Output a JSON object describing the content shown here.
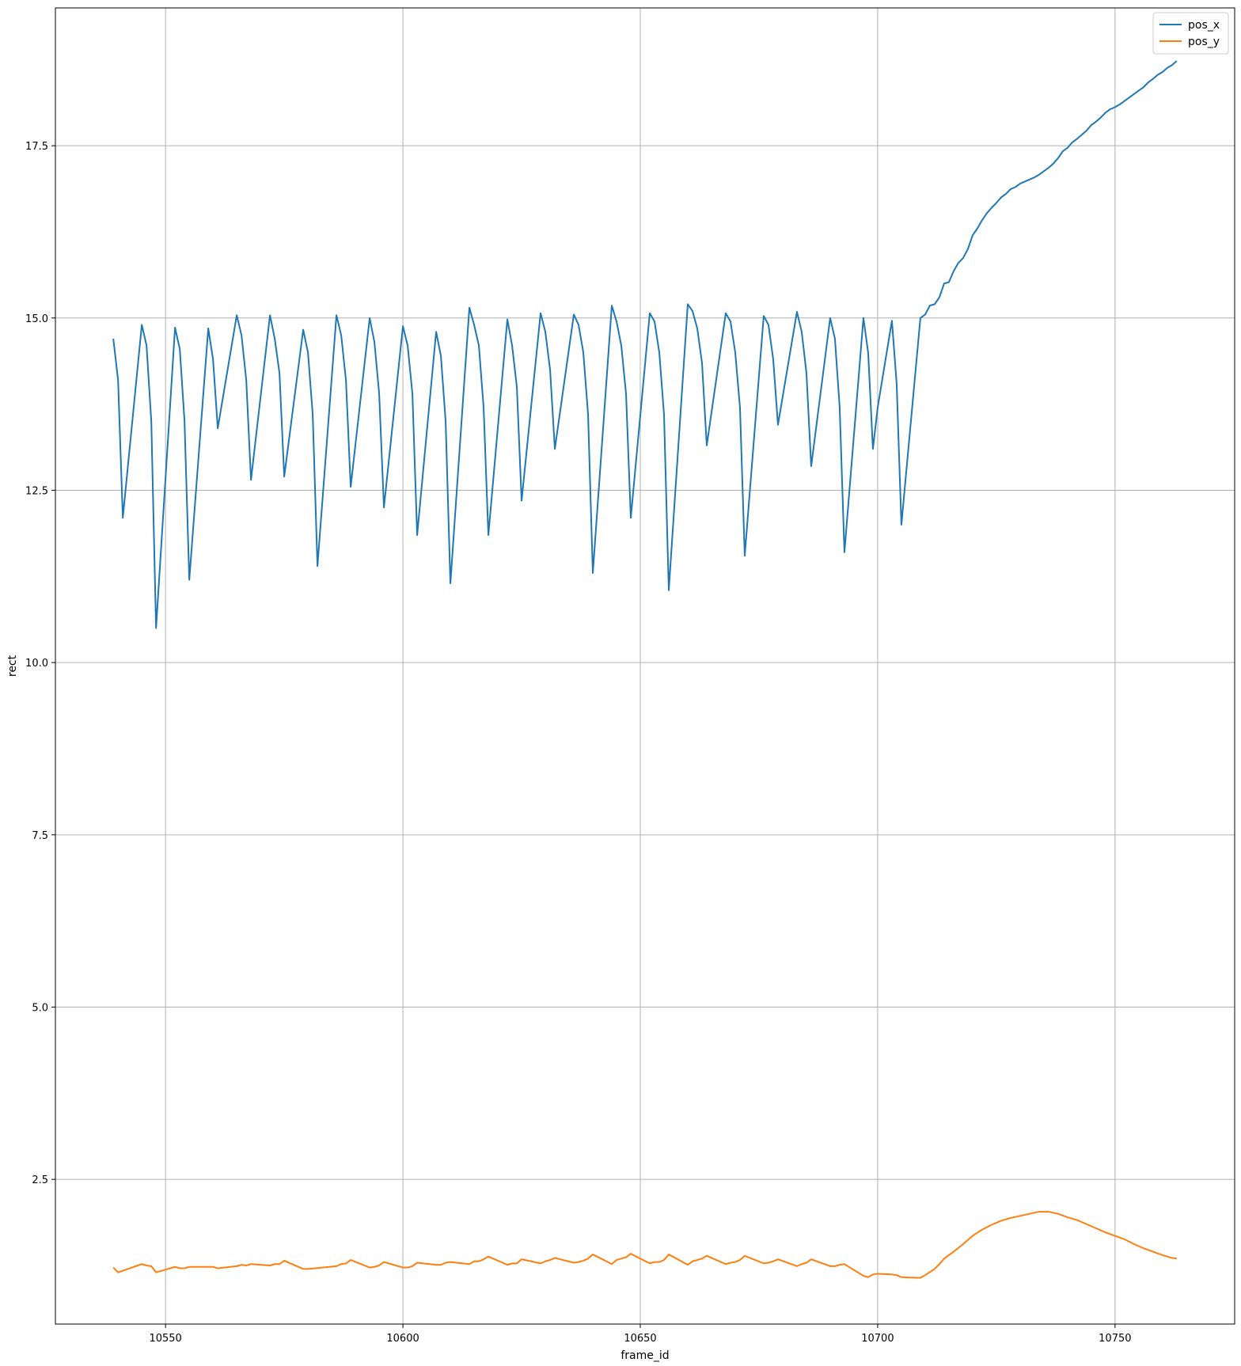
{
  "chart_data": {
    "type": "line",
    "xlabel": "frame_id",
    "ylabel": "rect",
    "xlim": [
      10526.8,
      10775.2
    ],
    "ylim": [
      0.4,
      19.5
    ],
    "xticks": [
      10550,
      10600,
      10650,
      10700,
      10750
    ],
    "yticks": [
      2.5,
      5.0,
      7.5,
      10.0,
      12.5,
      15.0,
      17.5
    ],
    "xtick_labels": [
      "10550",
      "10600",
      "10650",
      "10700",
      "10750"
    ],
    "ytick_labels": [
      "2.5",
      "5.0",
      "7.5",
      "10.0",
      "12.5",
      "15.0",
      "17.5"
    ],
    "grid": true,
    "legend_position": "top-right",
    "series": [
      {
        "name": "pos_x",
        "color": "#1f77b4",
        "points": [
          [
            10539,
            14.7
          ],
          [
            10540,
            14.1
          ],
          [
            10541,
            12.1
          ],
          [
            10545,
            14.9
          ],
          [
            10546,
            14.6
          ],
          [
            10547,
            13.5
          ],
          [
            10548,
            10.5
          ],
          [
            10552,
            14.86
          ],
          [
            10553,
            14.55
          ],
          [
            10554,
            13.5
          ],
          [
            10555,
            11.2
          ],
          [
            10559,
            14.85
          ],
          [
            10560,
            14.4
          ],
          [
            10561,
            13.4
          ],
          [
            10565,
            15.04
          ],
          [
            10566,
            14.75
          ],
          [
            10567,
            14.1
          ],
          [
            10568,
            12.65
          ],
          [
            10572,
            15.04
          ],
          [
            10573,
            14.7
          ],
          [
            10574,
            14.2
          ],
          [
            10575,
            12.7
          ],
          [
            10579,
            14.83
          ],
          [
            10580,
            14.5
          ],
          [
            10581,
            13.6
          ],
          [
            10582,
            11.4
          ],
          [
            10586,
            15.04
          ],
          [
            10587,
            14.75
          ],
          [
            10588,
            14.1
          ],
          [
            10589,
            12.55
          ],
          [
            10593,
            15.0
          ],
          [
            10594,
            14.65
          ],
          [
            10595,
            13.9
          ],
          [
            10596,
            12.25
          ],
          [
            10600,
            14.88
          ],
          [
            10601,
            14.6
          ],
          [
            10602,
            13.9
          ],
          [
            10603,
            11.85
          ],
          [
            10607,
            14.8
          ],
          [
            10608,
            14.45
          ],
          [
            10609,
            13.5
          ],
          [
            10610,
            11.15
          ],
          [
            10614,
            15.15
          ],
          [
            10615,
            14.9
          ],
          [
            10616,
            14.6
          ],
          [
            10617,
            13.7
          ],
          [
            10618,
            11.85
          ],
          [
            10622,
            14.98
          ],
          [
            10623,
            14.6
          ],
          [
            10624,
            14.0
          ],
          [
            10625,
            12.35
          ],
          [
            10629,
            15.07
          ],
          [
            10630,
            14.8
          ],
          [
            10631,
            14.25
          ],
          [
            10632,
            13.1
          ],
          [
            10636,
            15.05
          ],
          [
            10637,
            14.9
          ],
          [
            10638,
            14.5
          ],
          [
            10639,
            13.6
          ],
          [
            10640,
            11.3
          ],
          [
            10644,
            15.18
          ],
          [
            10645,
            14.95
          ],
          [
            10646,
            14.6
          ],
          [
            10647,
            13.9
          ],
          [
            10648,
            12.1
          ],
          [
            10652,
            15.07
          ],
          [
            10653,
            14.95
          ],
          [
            10654,
            14.5
          ],
          [
            10655,
            13.6
          ],
          [
            10656,
            11.05
          ],
          [
            10660,
            15.2
          ],
          [
            10661,
            15.1
          ],
          [
            10662,
            14.85
          ],
          [
            10663,
            14.35
          ],
          [
            10664,
            13.15
          ],
          [
            10668,
            15.07
          ],
          [
            10669,
            14.95
          ],
          [
            10670,
            14.5
          ],
          [
            10671,
            13.7
          ],
          [
            10672,
            11.55
          ],
          [
            10676,
            15.03
          ],
          [
            10677,
            14.9
          ],
          [
            10678,
            14.4
          ],
          [
            10679,
            13.45
          ],
          [
            10683,
            15.09
          ],
          [
            10684,
            14.8
          ],
          [
            10685,
            14.2
          ],
          [
            10686,
            12.85
          ],
          [
            10690,
            15.0
          ],
          [
            10691,
            14.7
          ],
          [
            10692,
            13.7
          ],
          [
            10693,
            11.6
          ],
          [
            10697,
            15.0
          ],
          [
            10698,
            14.5
          ],
          [
            10699,
            13.1
          ],
          [
            10700,
            13.7
          ],
          [
            10703,
            14.96
          ],
          [
            10704,
            14.05
          ],
          [
            10705,
            12.0
          ],
          [
            10709,
            15.0
          ],
          [
            10710,
            15.05
          ],
          [
            10711,
            15.18
          ],
          [
            10712,
            15.2
          ],
          [
            10713,
            15.3
          ],
          [
            10714,
            15.5
          ],
          [
            10715,
            15.52
          ],
          [
            10716,
            15.68
          ],
          [
            10717,
            15.8
          ],
          [
            10718,
            15.87
          ],
          [
            10719,
            16.0
          ],
          [
            10720,
            16.2
          ],
          [
            10721,
            16.3
          ],
          [
            10722,
            16.42
          ],
          [
            10723,
            16.52
          ],
          [
            10724,
            16.6
          ],
          [
            10725,
            16.67
          ],
          [
            10726,
            16.75
          ],
          [
            10727,
            16.8
          ],
          [
            10728,
            16.87
          ],
          [
            10729,
            16.9
          ],
          [
            10730,
            16.95
          ],
          [
            10731,
            16.98
          ],
          [
            10732,
            17.01
          ],
          [
            10733,
            17.04
          ],
          [
            10734,
            17.08
          ],
          [
            10735,
            17.13
          ],
          [
            10736,
            17.18
          ],
          [
            10737,
            17.24
          ],
          [
            10738,
            17.32
          ],
          [
            10739,
            17.42
          ],
          [
            10740,
            17.47
          ],
          [
            10741,
            17.55
          ],
          [
            10742,
            17.6
          ],
          [
            10743,
            17.66
          ],
          [
            10744,
            17.72
          ],
          [
            10745,
            17.8
          ],
          [
            10746,
            17.85
          ],
          [
            10747,
            17.91
          ],
          [
            10748,
            17.98
          ],
          [
            10749,
            18.03
          ],
          [
            10750,
            18.06
          ],
          [
            10751,
            18.1
          ],
          [
            10752,
            18.15
          ],
          [
            10753,
            18.2
          ],
          [
            10754,
            18.25
          ],
          [
            10755,
            18.3
          ],
          [
            10756,
            18.35
          ],
          [
            10757,
            18.42
          ],
          [
            10758,
            18.47
          ],
          [
            10759,
            18.53
          ],
          [
            10760,
            18.57
          ],
          [
            10761,
            18.63
          ],
          [
            10762,
            18.67
          ],
          [
            10763,
            18.73
          ]
        ]
      },
      {
        "name": "pos_y",
        "color": "#ff7f0e",
        "points": [
          [
            10539,
            1.22
          ],
          [
            10540,
            1.15
          ],
          [
            10545,
            1.27
          ],
          [
            10546,
            1.25
          ],
          [
            10547,
            1.24
          ],
          [
            10548,
            1.15
          ],
          [
            10552,
            1.23
          ],
          [
            10553,
            1.21
          ],
          [
            10554,
            1.21
          ],
          [
            10555,
            1.23
          ],
          [
            10559,
            1.23
          ],
          [
            10560,
            1.23
          ],
          [
            10561,
            1.21
          ],
          [
            10565,
            1.24
          ],
          [
            10566,
            1.26
          ],
          [
            10567,
            1.25
          ],
          [
            10568,
            1.27
          ],
          [
            10572,
            1.25
          ],
          [
            10573,
            1.27
          ],
          [
            10574,
            1.27
          ],
          [
            10575,
            1.32
          ],
          [
            10579,
            1.2
          ],
          [
            10580,
            1.2
          ],
          [
            10586,
            1.24
          ],
          [
            10587,
            1.27
          ],
          [
            10588,
            1.28
          ],
          [
            10589,
            1.33
          ],
          [
            10593,
            1.22
          ],
          [
            10594,
            1.23
          ],
          [
            10595,
            1.25
          ],
          [
            10596,
            1.3
          ],
          [
            10600,
            1.22
          ],
          [
            10601,
            1.22
          ],
          [
            10602,
            1.24
          ],
          [
            10603,
            1.29
          ],
          [
            10607,
            1.26
          ],
          [
            10608,
            1.26
          ],
          [
            10609,
            1.29
          ],
          [
            10610,
            1.3
          ],
          [
            10614,
            1.27
          ],
          [
            10615,
            1.31
          ],
          [
            10616,
            1.31
          ],
          [
            10617,
            1.34
          ],
          [
            10618,
            1.38
          ],
          [
            10622,
            1.26
          ],
          [
            10623,
            1.28
          ],
          [
            10624,
            1.28
          ],
          [
            10625,
            1.34
          ],
          [
            10629,
            1.28
          ],
          [
            10630,
            1.31
          ],
          [
            10631,
            1.33
          ],
          [
            10632,
            1.36
          ],
          [
            10636,
            1.29
          ],
          [
            10637,
            1.3
          ],
          [
            10638,
            1.32
          ],
          [
            10639,
            1.35
          ],
          [
            10640,
            1.41
          ],
          [
            10644,
            1.27
          ],
          [
            10645,
            1.33
          ],
          [
            10646,
            1.35
          ],
          [
            10647,
            1.37
          ],
          [
            10648,
            1.42
          ],
          [
            10652,
            1.28
          ],
          [
            10653,
            1.3
          ],
          [
            10654,
            1.3
          ],
          [
            10655,
            1.33
          ],
          [
            10656,
            1.41
          ],
          [
            10660,
            1.26
          ],
          [
            10661,
            1.31
          ],
          [
            10662,
            1.33
          ],
          [
            10663,
            1.35
          ],
          [
            10664,
            1.39
          ],
          [
            10668,
            1.27
          ],
          [
            10669,
            1.29
          ],
          [
            10670,
            1.3
          ],
          [
            10671,
            1.33
          ],
          [
            10672,
            1.39
          ],
          [
            10676,
            1.28
          ],
          [
            10677,
            1.29
          ],
          [
            10678,
            1.31
          ],
          [
            10679,
            1.34
          ],
          [
            10683,
            1.24
          ],
          [
            10684,
            1.27
          ],
          [
            10685,
            1.29
          ],
          [
            10686,
            1.34
          ],
          [
            10690,
            1.24
          ],
          [
            10691,
            1.24
          ],
          [
            10692,
            1.26
          ],
          [
            10693,
            1.27
          ],
          [
            10697,
            1.1
          ],
          [
            10698,
            1.08
          ],
          [
            10699,
            1.12
          ],
          [
            10700,
            1.13
          ],
          [
            10703,
            1.12
          ],
          [
            10704,
            1.11
          ],
          [
            10705,
            1.08
          ],
          [
            10709,
            1.07
          ],
          [
            10710,
            1.11
          ],
          [
            10712,
            1.2
          ],
          [
            10713,
            1.27
          ],
          [
            10714,
            1.35
          ],
          [
            10716,
            1.45
          ],
          [
            10718,
            1.56
          ],
          [
            10720,
            1.68
          ],
          [
            10722,
            1.77
          ],
          [
            10724,
            1.84
          ],
          [
            10726,
            1.9
          ],
          [
            10728,
            1.94
          ],
          [
            10730,
            1.97
          ],
          [
            10732,
            2.0
          ],
          [
            10734,
            2.03
          ],
          [
            10736,
            2.03
          ],
          [
            10738,
            2.0
          ],
          [
            10740,
            1.95
          ],
          [
            10742,
            1.91
          ],
          [
            10744,
            1.85
          ],
          [
            10746,
            1.79
          ],
          [
            10748,
            1.73
          ],
          [
            10750,
            1.68
          ],
          [
            10752,
            1.63
          ],
          [
            10754,
            1.56
          ],
          [
            10756,
            1.5
          ],
          [
            10758,
            1.45
          ],
          [
            10760,
            1.4
          ],
          [
            10762,
            1.36
          ],
          [
            10763,
            1.35
          ]
        ]
      }
    ]
  }
}
